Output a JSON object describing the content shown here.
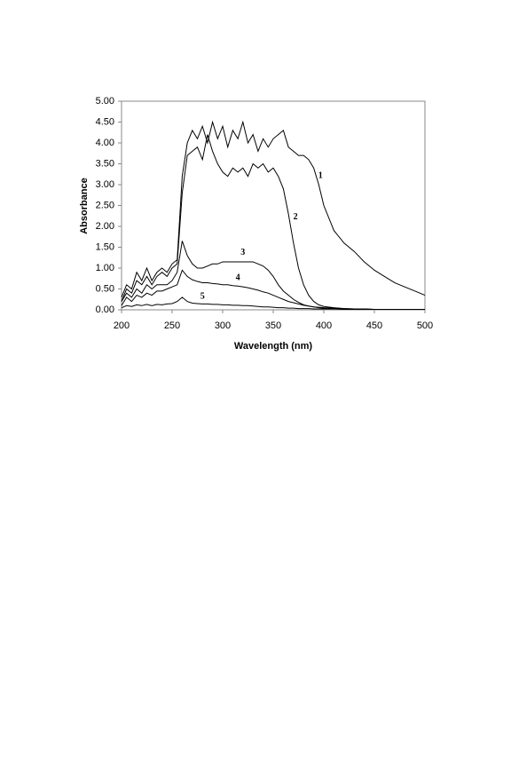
{
  "chart_data": {
    "type": "line",
    "xlabel": "Wavelength (nm)",
    "ylabel": "Absorbance",
    "xlim": [
      200,
      500
    ],
    "xticks": [
      200,
      250,
      300,
      350,
      400,
      450,
      500
    ],
    "ylim": [
      0,
      5
    ],
    "yticks": [
      {
        "value": 0,
        "label": "0.00"
      },
      {
        "value": 0.5,
        "label": "0.50"
      },
      {
        "value": 1,
        "label": "1.00"
      },
      {
        "value": 1.5,
        "label": "1.50"
      },
      {
        "value": 2,
        "label": "2.00"
      },
      {
        "value": 2.5,
        "label": "2.50"
      },
      {
        "value": 3,
        "label": "3.00"
      },
      {
        "value": 3.5,
        "label": "3.50"
      },
      {
        "value": 4,
        "label": "4.00"
      },
      {
        "value": 4.5,
        "label": "4.50"
      },
      {
        "value": 5,
        "label": "5.00"
      }
    ],
    "x": [
      200,
      205,
      210,
      215,
      220,
      225,
      230,
      235,
      240,
      245,
      250,
      255,
      260,
      265,
      270,
      275,
      280,
      285,
      290,
      295,
      300,
      305,
      310,
      315,
      320,
      325,
      330,
      335,
      340,
      345,
      350,
      355,
      360,
      365,
      370,
      375,
      380,
      385,
      390,
      395,
      400,
      410,
      420,
      430,
      440,
      450,
      460,
      470,
      480,
      490,
      500
    ],
    "series": [
      {
        "name": "1",
        "color": "#000000",
        "values": [
          0.3,
          0.6,
          0.5,
          0.9,
          0.7,
          1.0,
          0.7,
          0.9,
          1.0,
          0.9,
          1.1,
          1.2,
          3.2,
          4.0,
          4.3,
          4.1,
          4.4,
          4.0,
          4.5,
          4.1,
          4.4,
          3.9,
          4.3,
          4.1,
          4.5,
          4.0,
          4.2,
          3.8,
          4.1,
          3.9,
          4.1,
          4.2,
          4.3,
          3.9,
          3.8,
          3.7,
          3.7,
          3.6,
          3.4,
          3.0,
          2.5,
          1.9,
          1.6,
          1.4,
          1.15,
          0.95,
          0.8,
          0.65,
          0.55,
          0.45,
          0.35
        ]
      },
      {
        "name": "2",
        "color": "#000000",
        "values": [
          0.2,
          0.5,
          0.4,
          0.7,
          0.6,
          0.8,
          0.6,
          0.8,
          0.9,
          0.8,
          1.0,
          1.1,
          2.8,
          3.7,
          3.8,
          3.9,
          3.6,
          4.2,
          3.8,
          3.5,
          3.3,
          3.2,
          3.4,
          3.3,
          3.4,
          3.2,
          3.5,
          3.4,
          3.5,
          3.3,
          3.4,
          3.2,
          2.9,
          2.3,
          1.6,
          1.0,
          0.6,
          0.35,
          0.2,
          0.12,
          0.08,
          0.05,
          0.03,
          0.02,
          0.02,
          0.01,
          0.01,
          0.01,
          0.01,
          0.01,
          0.01
        ]
      },
      {
        "name": "3",
        "color": "#000000",
        "values": [
          0.2,
          0.4,
          0.3,
          0.5,
          0.4,
          0.6,
          0.5,
          0.6,
          0.6,
          0.6,
          0.7,
          0.9,
          1.65,
          1.3,
          1.1,
          1.0,
          1.0,
          1.05,
          1.1,
          1.1,
          1.15,
          1.15,
          1.15,
          1.15,
          1.15,
          1.15,
          1.15,
          1.1,
          1.05,
          0.95,
          0.8,
          0.6,
          0.45,
          0.35,
          0.25,
          0.18,
          0.12,
          0.09,
          0.07,
          0.05,
          0.04,
          0.03,
          0.02,
          0.02,
          0.01,
          0.01,
          0.01,
          0.01,
          0.01,
          0.01,
          0.01
        ]
      },
      {
        "name": "4",
        "color": "#000000",
        "values": [
          0.1,
          0.3,
          0.2,
          0.35,
          0.3,
          0.4,
          0.35,
          0.45,
          0.45,
          0.5,
          0.55,
          0.6,
          0.95,
          0.8,
          0.72,
          0.68,
          0.65,
          0.65,
          0.63,
          0.62,
          0.6,
          0.6,
          0.58,
          0.57,
          0.55,
          0.53,
          0.5,
          0.47,
          0.43,
          0.4,
          0.35,
          0.3,
          0.25,
          0.2,
          0.17,
          0.14,
          0.11,
          0.09,
          0.07,
          0.06,
          0.05,
          0.04,
          0.03,
          0.02,
          0.02,
          0.01,
          0.01,
          0.01,
          0.01,
          0.01,
          0.01
        ]
      },
      {
        "name": "5",
        "color": "#000000",
        "values": [
          0.05,
          0.1,
          0.08,
          0.12,
          0.1,
          0.13,
          0.1,
          0.13,
          0.12,
          0.14,
          0.15,
          0.2,
          0.3,
          0.2,
          0.16,
          0.15,
          0.14,
          0.14,
          0.13,
          0.13,
          0.12,
          0.12,
          0.11,
          0.11,
          0.1,
          0.1,
          0.09,
          0.08,
          0.07,
          0.07,
          0.06,
          0.05,
          0.05,
          0.04,
          0.04,
          0.03,
          0.03,
          0.03,
          0.02,
          0.02,
          0.02,
          0.02,
          0.01,
          0.01,
          0.01,
          0.01,
          0.01,
          null,
          null,
          null,
          null
        ]
      }
    ]
  }
}
